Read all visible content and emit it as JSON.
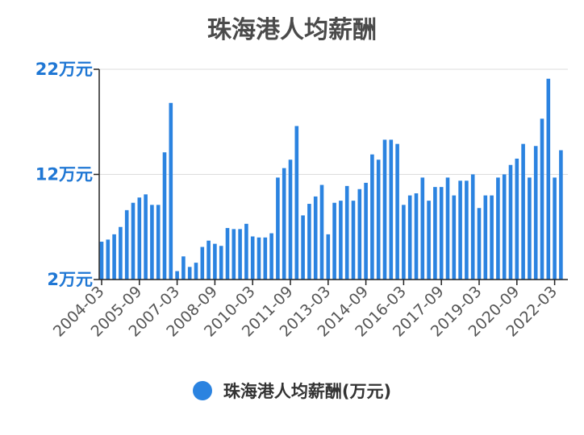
{
  "chart_data": {
    "type": "bar",
    "title": "珠海港人均薪酬",
    "unit": "万元",
    "ylim": [
      2,
      22
    ],
    "yticks": [
      {
        "value": 2,
        "label": "2万元"
      },
      {
        "value": 12,
        "label": "12万元"
      },
      {
        "value": 22,
        "label": "22万元"
      }
    ],
    "xtick_labels": [
      "2004-03",
      "2005-09",
      "2007-03",
      "2008-09",
      "2010-03",
      "2011-09",
      "2013-03",
      "2014-09",
      "2016-03",
      "2017-09",
      "2019-03",
      "2020-09",
      "2022-03"
    ],
    "grid": true,
    "bar_color": "#2b83e0",
    "series": [
      {
        "name": "珠海港人均薪酬(万元)",
        "values": [
          5.6,
          5.8,
          6.3,
          7.0,
          8.6,
          9.3,
          9.8,
          10.1,
          9.1,
          9.1,
          14.1,
          18.8,
          2.8,
          4.2,
          3.2,
          3.6,
          5.1,
          5.7,
          5.4,
          5.2,
          6.9,
          6.8,
          6.8,
          7.3,
          6.1,
          6.0,
          6.0,
          6.4,
          11.7,
          12.6,
          13.4,
          16.6,
          8.1,
          9.2,
          9.9,
          11.0,
          6.3,
          9.3,
          9.5,
          10.9,
          9.5,
          10.6,
          11.2,
          13.9,
          13.4,
          15.3,
          15.3,
          14.9,
          9.1,
          10.0,
          10.2,
          11.7,
          9.5,
          10.8,
          10.8,
          11.7,
          10.0,
          11.4,
          11.4,
          12.0,
          8.8,
          10.0,
          10.0,
          11.7,
          12.0,
          12.9,
          13.5,
          14.9,
          11.7,
          14.7,
          17.3,
          21.1,
          11.7,
          14.3
        ]
      }
    ]
  },
  "legend": {
    "label": "珠海港人均薪酬(万元)"
  }
}
